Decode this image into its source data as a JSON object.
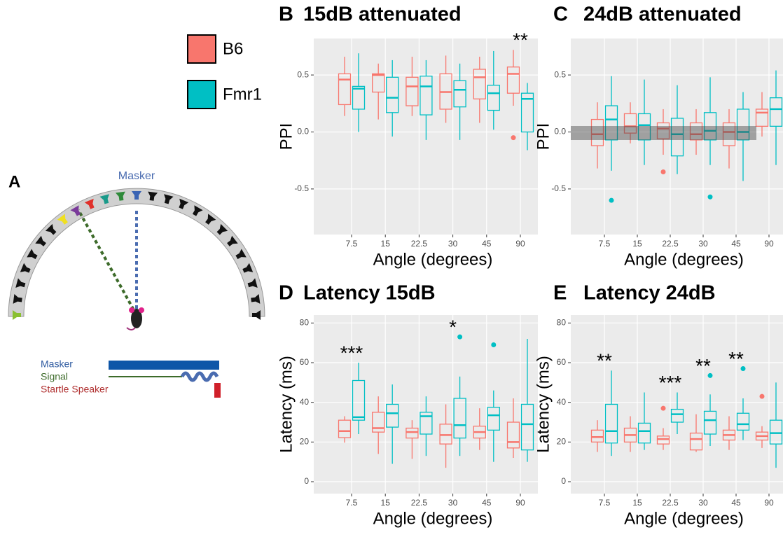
{
  "diagram": {
    "label": "A",
    "arc_label": "Masker",
    "key": [
      "Masker",
      "Signal",
      "Startle Speaker"
    ]
  },
  "chart_data": [
    {
      "type": "box",
      "panel_label": "B",
      "title": "15dB attenuated",
      "xlabel": "Angle (degrees)",
      "ylabel": "PPI",
      "categories": [
        "7.5",
        "15",
        "22.5",
        "30",
        "45",
        "90"
      ],
      "ylim": [
        -0.9,
        0.82
      ],
      "yticks": [
        {
          "value": 0.5,
          "label": "0.5"
        },
        {
          "value": 0,
          "label": "0.0"
        },
        {
          "value": -0.5,
          "label": "-0.5"
        }
      ],
      "series": [
        {
          "name": "B6",
          "color": "#f8766d",
          "min": [
            0.14,
            0.11,
            0.14,
            0.08,
            0.08,
            0.23
          ],
          "q1": [
            0.24,
            0.35,
            0.23,
            0.2,
            0.29,
            0.34
          ],
          "median": [
            0.46,
            0.5,
            0.4,
            0.35,
            0.48,
            0.51
          ],
          "q3": [
            0.51,
            0.51,
            0.48,
            0.51,
            0.55,
            0.57
          ],
          "max": [
            0.66,
            0.6,
            0.66,
            0.67,
            0.66,
            0.72
          ],
          "outliers": [
            [],
            [],
            [],
            [],
            [],
            [
              -0.05
            ]
          ]
        },
        {
          "name": "Fmr1",
          "color": "#00bfc4",
          "min": [
            0.0,
            -0.04,
            -0.07,
            -0.07,
            0.02,
            -0.16
          ],
          "q1": [
            0.2,
            0.17,
            0.15,
            0.22,
            0.19,
            0.0
          ],
          "median": [
            0.38,
            0.3,
            0.4,
            0.37,
            0.34,
            0.29
          ],
          "q3": [
            0.4,
            0.48,
            0.49,
            0.45,
            0.41,
            0.34
          ],
          "max": [
            0.69,
            0.63,
            0.63,
            0.6,
            0.71,
            0.43
          ],
          "outliers": [
            [],
            [],
            [],
            [],
            [],
            []
          ]
        }
      ],
      "annotations": [
        {
          "x": "90",
          "text": "**"
        }
      ]
    },
    {
      "type": "box",
      "panel_label": "C",
      "title": "24dB attenuated",
      "xlabel": "Angle (degrees)",
      "ylabel": "PPI",
      "categories": [
        "7.5",
        "15",
        "22.5",
        "30",
        "45",
        "90"
      ],
      "ylim": [
        -0.9,
        0.82
      ],
      "yticks": [
        {
          "value": 0.5,
          "label": "0.5"
        },
        {
          "value": 0,
          "label": "0.0"
        },
        {
          "value": -0.5,
          "label": "-0.5"
        }
      ],
      "series": [
        {
          "color": "#f8766d",
          "min": [
            -0.32,
            -0.1,
            -0.2,
            -0.2,
            -0.32,
            -0.04
          ],
          "q1": [
            -0.12,
            -0.01,
            -0.06,
            -0.07,
            -0.12,
            0.05
          ],
          "median": [
            -0.02,
            0.05,
            0.03,
            -0.02,
            0.0,
            0.17
          ],
          "q3": [
            0.11,
            0.16,
            0.08,
            0.08,
            0.08,
            0.2
          ],
          "max": [
            0.26,
            0.26,
            0.2,
            0.2,
            0.2,
            0.35
          ],
          "outliers": [
            [],
            [],
            [
              -0.35
            ],
            [],
            [],
            []
          ]
        },
        {
          "color": "#00bfc4",
          "min": [
            -0.34,
            -0.29,
            -0.37,
            -0.29,
            -0.43,
            -0.29
          ],
          "q1": [
            -0.07,
            -0.07,
            -0.21,
            -0.07,
            -0.07,
            0.05
          ],
          "median": [
            0.11,
            0.06,
            -0.02,
            0.01,
            0.0,
            0.2
          ],
          "q3": [
            0.23,
            0.16,
            0.12,
            0.17,
            0.2,
            0.3
          ],
          "max": [
            0.49,
            0.46,
            0.41,
            0.48,
            0.35,
            0.54
          ],
          "outliers": [
            [
              -0.6
            ],
            [],
            [],
            [
              -0.57
            ],
            [],
            []
          ]
        }
      ],
      "annotations": []
    },
    {
      "type": "box",
      "panel_label": "D",
      "title": "Latency 15dB",
      "xlabel": "Angle (degrees)",
      "ylabel": "Latency (ms)",
      "categories": [
        "7.5",
        "15",
        "22.5",
        "30",
        "45",
        "90"
      ],
      "ylim": [
        -6,
        84
      ],
      "yticks": [
        0,
        20,
        40,
        60,
        80
      ],
      "series": [
        {
          "color": "#f8766d",
          "min": [
            19.7,
            14,
            11.5,
            7,
            16,
            12
          ],
          "q1": [
            22.2,
            25,
            22,
            19,
            22,
            17
          ],
          "median": [
            25.5,
            27,
            25,
            23.5,
            25,
            20
          ],
          "q3": [
            31,
            35,
            27,
            29,
            28,
            30
          ],
          "max": [
            33,
            43,
            31,
            39,
            37,
            42
          ],
          "outliers": [
            [],
            [],
            [],
            [],
            [],
            []
          ]
        },
        {
          "color": "#00bfc4",
          "min": [
            24,
            9,
            13,
            13,
            10,
            10
          ],
          "q1": [
            31,
            27.5,
            24,
            22,
            26,
            16
          ],
          "median": [
            32.5,
            34.5,
            33,
            28.5,
            33.5,
            29
          ],
          "q3": [
            51,
            39,
            35,
            42,
            37.5,
            39
          ],
          "max": [
            60,
            49,
            43,
            53,
            46,
            72
          ],
          "outliers": [
            [],
            [],
            [],
            [
              73
            ],
            [
              69
            ],
            []
          ]
        }
      ],
      "annotations": [
        {
          "x": "7.5",
          "text": "***"
        },
        {
          "x": "30",
          "text": "*"
        }
      ]
    },
    {
      "type": "box",
      "panel_label": "E",
      "title": "Latency 24dB",
      "xlabel": "Angle (degrees)",
      "ylabel": "Latency (ms)",
      "categories": [
        "7.5",
        "15",
        "22.5",
        "30",
        "45",
        "90"
      ],
      "ylim": [
        -6,
        84
      ],
      "yticks": [
        0,
        20,
        40,
        60,
        80
      ],
      "series": [
        {
          "color": "#f8766d",
          "min": [
            15,
            15,
            16,
            15,
            16,
            17
          ],
          "q1": [
            20,
            20,
            19,
            16,
            21,
            21
          ],
          "median": [
            22.5,
            23.5,
            21.5,
            21.5,
            23.5,
            23
          ],
          "q3": [
            26,
            27,
            23,
            24.5,
            26,
            25
          ],
          "max": [
            31,
            33,
            27,
            34,
            33,
            28
          ],
          "outliers": [
            [],
            [],
            [
              37
            ],
            [],
            [],
            [
              43
            ]
          ]
        },
        {
          "color": "#00bfc4",
          "min": [
            13,
            16,
            24,
            18,
            21,
            7
          ],
          "q1": [
            19.5,
            19.5,
            30,
            24,
            26,
            19
          ],
          "median": [
            25.5,
            25.5,
            34,
            31,
            29,
            24.5
          ],
          "q3": [
            39,
            29.5,
            36.5,
            35.5,
            34.5,
            31
          ],
          "max": [
            56,
            45,
            45,
            44,
            42,
            50
          ],
          "outliers": [
            [],
            [],
            [],
            [
              53.5
            ],
            [
              57
            ],
            []
          ]
        }
      ],
      "annotations": [
        {
          "x": "7.5",
          "text": "**"
        },
        {
          "x": "22.5",
          "text": "***"
        },
        {
          "x": "30",
          "text": "**"
        },
        {
          "x": "45",
          "text": "**"
        }
      ]
    }
  ]
}
